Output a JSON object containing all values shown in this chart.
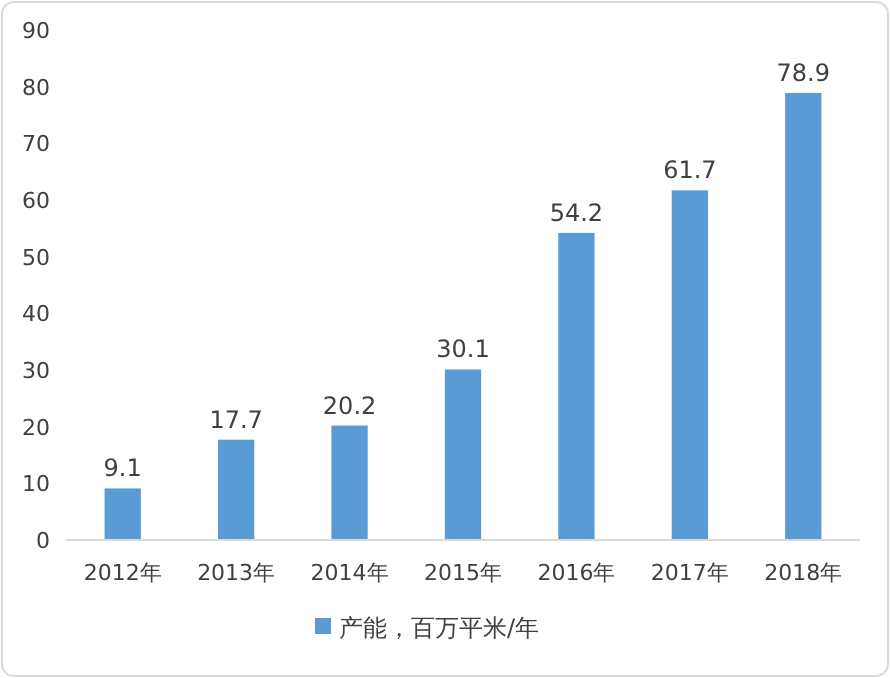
{
  "chart_data": {
    "type": "bar",
    "categories": [
      "2012年",
      "2013年",
      "2014年",
      "2015年",
      "2016年",
      "2017年",
      "2018年"
    ],
    "series": [
      {
        "name": "产能，百万平米/年",
        "color": "#5b9bd5",
        "values": [
          9.1,
          17.7,
          20.2,
          30.1,
          54.2,
          61.7,
          78.9
        ]
      }
    ],
    "ylim": [
      0,
      90
    ],
    "yticks": [
      0,
      10,
      20,
      30,
      40,
      50,
      60,
      70,
      80,
      90
    ],
    "data_labels": true,
    "legend": "bottom"
  }
}
